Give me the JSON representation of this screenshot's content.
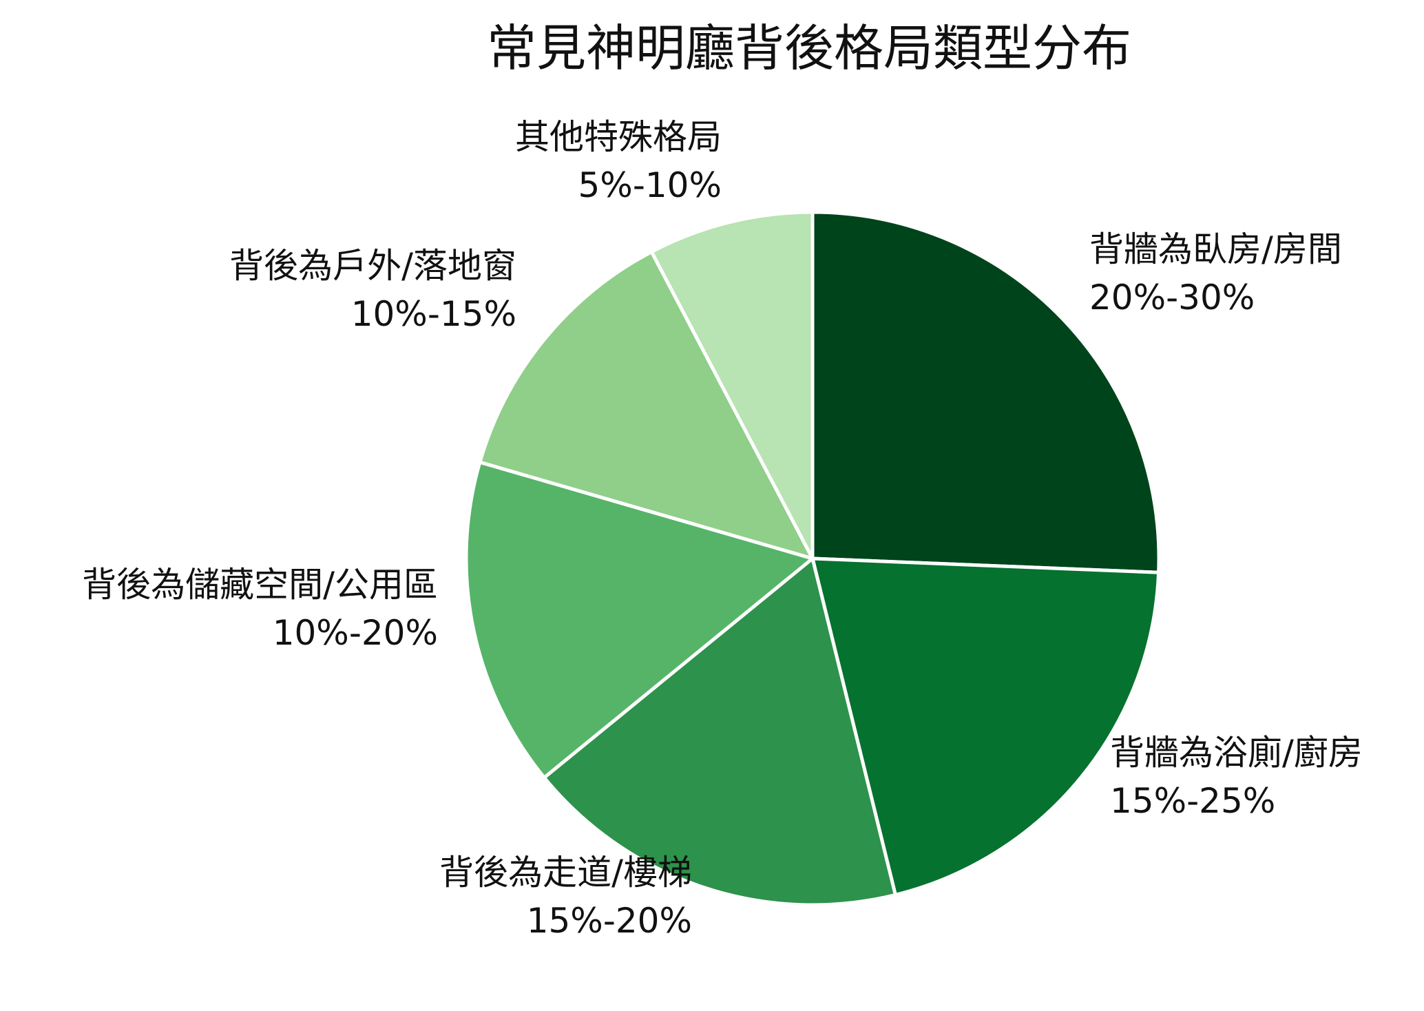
{
  "chart_data": {
    "type": "pie",
    "title": "常見神明廳背後格局類型分布",
    "slices": [
      {
        "label": "背牆為臥房/房間",
        "value_text": "20%-30%",
        "value": 25,
        "color": "#00441b"
      },
      {
        "label": "背牆為浴廁/廚房",
        "value_text": "15%-25%",
        "value": 20,
        "color": "#06722f"
      },
      {
        "label": "背後為走道/樓梯",
        "value_text": "15%-20%",
        "value": 17.5,
        "color": "#2d924b"
      },
      {
        "label": "背後為儲藏空間/公用區",
        "value_text": "10%-20%",
        "value": 15,
        "color": "#56b468"
      },
      {
        "label": "背後為戶外/落地窗",
        "value_text": "10%-15%",
        "value": 12.5,
        "color": "#8fcf89"
      },
      {
        "label": "其他特殊格局",
        "value_text": "5%-10%",
        "value": 7.5,
        "color": "#b8e3b2"
      }
    ],
    "start": "top",
    "direction": "clockwise",
    "legend": "none"
  }
}
